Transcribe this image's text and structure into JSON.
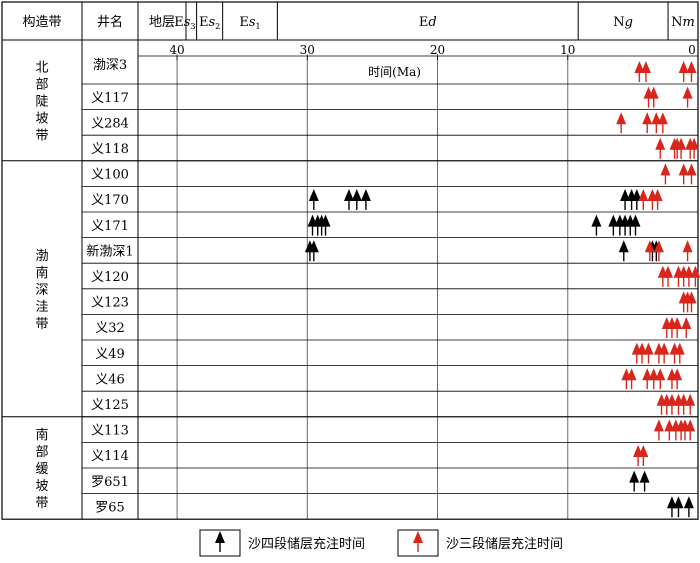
{
  "chart_data": {
    "type": "scatter",
    "x_reversed": true,
    "xlim": [
      43,
      0
    ],
    "xlabel": "时间(Ma)",
    "xticks": [
      "40",
      "30",
      "20",
      "10",
      "0"
    ],
    "xtick_values": [
      40,
      30,
      20,
      10,
      0
    ],
    "header": {
      "zone_col": "构造带",
      "well_col": "井名",
      "strata_col": "地层",
      "strata": [
        {
          "base": "Es",
          "sub": "3",
          "from": 40.3,
          "to": 38.5
        },
        {
          "base": "Es",
          "sub": "2",
          "from": 38.5,
          "to": 36.5
        },
        {
          "base": "Es",
          "sub": "1",
          "from": 36.5,
          "to": 32.3
        },
        {
          "base": "Ed",
          "from": 32.3,
          "to": 9.2
        },
        {
          "base": "Ng",
          "from": 9.2,
          "to": 2.3
        },
        {
          "base": "Nm",
          "from": 2.3,
          "to": 0
        }
      ]
    },
    "zones": [
      {
        "name": "北部陡坡带",
        "wells": [
          "渤深3",
          "义117",
          "义284",
          "义118"
        ]
      },
      {
        "name": "渤南深洼带",
        "wells": [
          "义100",
          "义170",
          "义171",
          "新渤深1",
          "义120",
          "义123",
          "义32",
          "义49",
          "义46",
          "义125"
        ]
      },
      {
        "name": "南部缓坡带",
        "wells": [
          "义113",
          "义114",
          "罗651",
          "罗65"
        ]
      }
    ],
    "series": [
      {
        "name": "沙四段储层充注时间",
        "color": "#000000",
        "points": [
          {
            "well": "义170",
            "x": [
              29.5,
              26.8,
              26.2,
              25.5,
              5.6,
              5.1,
              4.7
            ]
          },
          {
            "well": "义171",
            "x": [
              29.6,
              29.2,
              28.9,
              28.6,
              7.8,
              6.5,
              6.0,
              5.6,
              5.2,
              4.8
            ]
          },
          {
            "well": "新渤深1",
            "x": [
              29.8,
              29.5,
              5.7,
              3.5,
              3.2
            ]
          },
          {
            "well": "罗651",
            "x": [
              4.9,
              4.1
            ]
          },
          {
            "well": "罗65",
            "x": [
              2.0,
              1.5,
              0.7
            ]
          }
        ]
      },
      {
        "name": "沙三段储层充注时间",
        "color": "#d9261c",
        "points": [
          {
            "well": "渤深3",
            "x": [
              4.5,
              4.0,
              1.1,
              0.5
            ]
          },
          {
            "well": "义117",
            "x": [
              3.8,
              3.4,
              0.8
            ]
          },
          {
            "well": "义284",
            "x": [
              5.9,
              3.9,
              3.2,
              2.7
            ]
          },
          {
            "well": "义118",
            "x": [
              2.9,
              1.8,
              1.6,
              1.3,
              0.6,
              0.3
            ]
          },
          {
            "well": "义100",
            "x": [
              2.5,
              1.1,
              0.5
            ]
          },
          {
            "well": "义170",
            "x": [
              4.2,
              3.5,
              3.1
            ]
          },
          {
            "well": "新渤深1",
            "x": [
              3.7,
              3.0,
              0.8
            ]
          },
          {
            "well": "义120",
            "x": [
              2.7,
              2.3,
              1.5,
              1.1,
              0.7,
              0.2
            ]
          },
          {
            "well": "义123",
            "x": [
              1.1,
              0.8,
              0.5
            ]
          },
          {
            "well": "义32",
            "x": [
              2.4,
              2.0,
              1.6,
              0.9
            ]
          },
          {
            "well": "义49",
            "x": [
              4.7,
              4.3,
              3.8,
              3.0,
              2.6,
              1.8,
              1.4
            ]
          },
          {
            "well": "义46",
            "x": [
              5.5,
              5.1,
              3.9,
              3.4,
              2.9,
              2.0,
              1.6
            ]
          },
          {
            "well": "义125",
            "x": [
              2.8,
              2.4,
              2.0,
              1.5,
              1.1,
              0.6
            ]
          },
          {
            "well": "义113",
            "x": [
              3.0,
              2.2,
              1.7,
              1.3,
              1.0,
              0.6
            ]
          },
          {
            "well": "义114",
            "x": [
              4.6,
              4.2
            ]
          }
        ]
      }
    ]
  }
}
